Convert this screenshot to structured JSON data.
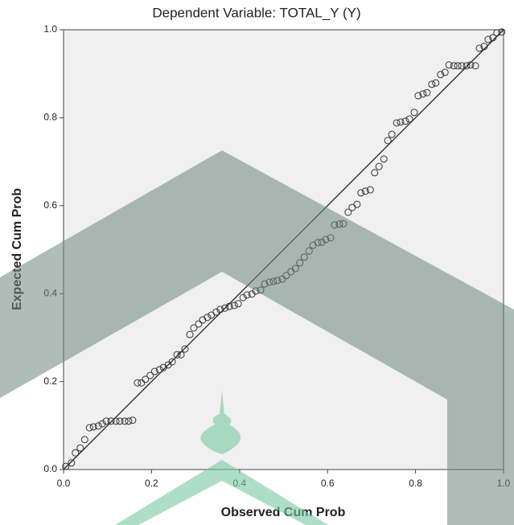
{
  "chart_data": {
    "type": "scatter",
    "title": "Dependent Variable: TOTAL_Y (Y)",
    "x_label": "Observed Cum Prob",
    "y_label": "Expected Cum Prob",
    "x": [
      0.005,
      0.018,
      0.027,
      0.038,
      0.048,
      0.059,
      0.068,
      0.079,
      0.088,
      0.097,
      0.108,
      0.119,
      0.128,
      0.139,
      0.148,
      0.157,
      0.168,
      0.177,
      0.186,
      0.197,
      0.207,
      0.218,
      0.227,
      0.238,
      0.247,
      0.258,
      0.267,
      0.276,
      0.287,
      0.296,
      0.307,
      0.316,
      0.327,
      0.336,
      0.347,
      0.356,
      0.367,
      0.377,
      0.388,
      0.397,
      0.408,
      0.417,
      0.428,
      0.437,
      0.448,
      0.457,
      0.468,
      0.477,
      0.486,
      0.497,
      0.506,
      0.517,
      0.527,
      0.537,
      0.547,
      0.558,
      0.567,
      0.578,
      0.587,
      0.596,
      0.607,
      0.616,
      0.627,
      0.636,
      0.647,
      0.656,
      0.667,
      0.676,
      0.686,
      0.697,
      0.707,
      0.717,
      0.728,
      0.737,
      0.746,
      0.757,
      0.766,
      0.777,
      0.786,
      0.797,
      0.806,
      0.817,
      0.826,
      0.837,
      0.846,
      0.857,
      0.867,
      0.876,
      0.887,
      0.896,
      0.905,
      0.916,
      0.925,
      0.936,
      0.945,
      0.956,
      0.965,
      0.976,
      0.985,
      0.996
    ],
    "series": [
      {
        "name": "Expected Cum Prob",
        "color": "#333333",
        "values": [
          0.007,
          0.015,
          0.038,
          0.049,
          0.068,
          0.095,
          0.097,
          0.099,
          0.104,
          0.11,
          0.11,
          0.11,
          0.11,
          0.11,
          0.11,
          0.112,
          0.197,
          0.197,
          0.205,
          0.214,
          0.223,
          0.227,
          0.232,
          0.238,
          0.245,
          0.261,
          0.261,
          0.274,
          0.307,
          0.322,
          0.331,
          0.34,
          0.346,
          0.351,
          0.358,
          0.364,
          0.367,
          0.371,
          0.373,
          0.377,
          0.391,
          0.397,
          0.399,
          0.406,
          0.408,
          0.422,
          0.426,
          0.428,
          0.43,
          0.433,
          0.441,
          0.45,
          0.457,
          0.47,
          0.483,
          0.497,
          0.51,
          0.516,
          0.517,
          0.523,
          0.527,
          0.556,
          0.558,
          0.559,
          0.585,
          0.596,
          0.603,
          0.629,
          0.633,
          0.636,
          0.675,
          0.689,
          0.706,
          0.748,
          0.762,
          0.788,
          0.79,
          0.792,
          0.797,
          0.812,
          0.85,
          0.854,
          0.857,
          0.876,
          0.879,
          0.898,
          0.903,
          0.92,
          0.918,
          0.918,
          0.918,
          0.918,
          0.92,
          0.918,
          0.958,
          0.962,
          0.978,
          0.982,
          0.993,
          0.995
        ]
      }
    ],
    "xlim": [
      0,
      1
    ],
    "ylim": [
      0,
      1
    ],
    "xticks": [
      {
        "value": 0,
        "label": "0.0"
      },
      0.2,
      0.4,
      0.6,
      0.8,
      {
        "value": 1,
        "label": "1.0"
      }
    ],
    "yticks": [
      {
        "value": 0,
        "label": "0.0"
      },
      0.2,
      0.4,
      0.6,
      0.8,
      {
        "value": 1,
        "label": "1.0"
      }
    ]
  }
}
